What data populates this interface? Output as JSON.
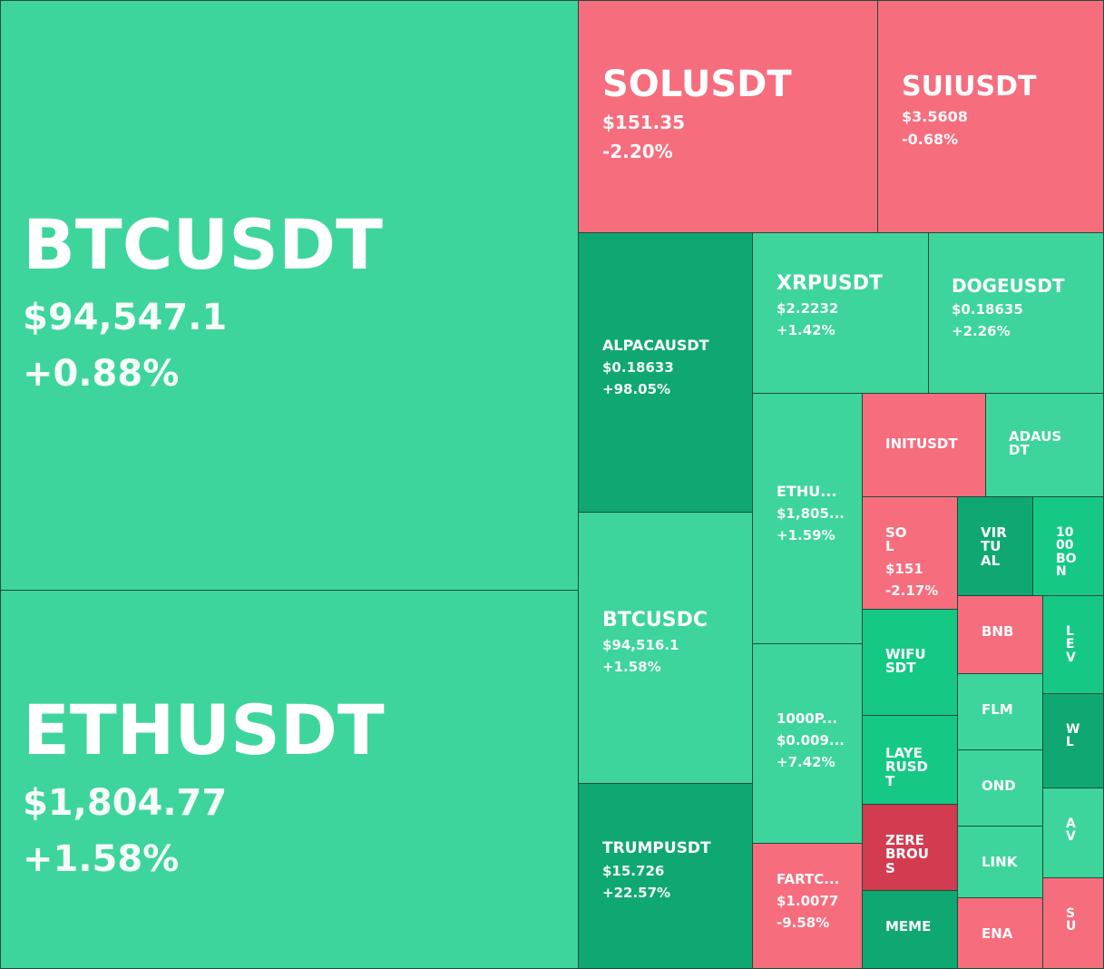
{
  "colors": {
    "up": "#3dd59b",
    "strong_up": "#10a872",
    "mid_up": "#15c985",
    "down": "#f66d7d",
    "strong_down": "#d33b51"
  },
  "chart_data": {
    "type": "treemap",
    "tiles": [
      {
        "symbol": "BTCUSDT",
        "price": "$94,547.1",
        "change": "+0.88%",
        "change_pct": 0.88
      },
      {
        "symbol": "ETHUSDT",
        "price": "$1,804.77",
        "change": "+1.58%",
        "change_pct": 1.58
      },
      {
        "symbol": "SOLUSDT",
        "price": "$151.35",
        "change": "-2.20%",
        "change_pct": -2.2
      },
      {
        "symbol": "SUIUSDT",
        "price": "$3.5608",
        "change": "-0.68%",
        "change_pct": -0.68
      },
      {
        "symbol": "ALPACAUSDT",
        "price": "$0.18633",
        "change": "+98.05%",
        "change_pct": 98.05
      },
      {
        "symbol": "XRPUSDT",
        "price": "$2.2232",
        "change": "+1.42%",
        "change_pct": 1.42
      },
      {
        "symbol": "DOGEUSDT",
        "price": "$0.18635",
        "change": "+2.26%",
        "change_pct": 2.26
      },
      {
        "symbol": "BTCUSDC",
        "price": "$94,516.1",
        "change": "+1.58%",
        "change_pct": 1.58
      },
      {
        "symbol": "ETHU...",
        "price": "$1,805...",
        "change": "+1.59%",
        "change_pct": 1.59
      },
      {
        "symbol": "INITUSDT",
        "price": "",
        "change": "",
        "change_pct": -1.0
      },
      {
        "symbol": "ADAUSDT",
        "price": "",
        "change": "",
        "change_pct": 1.0
      },
      {
        "symbol": "SOL",
        "price": "$151",
        "change": "-2.17%",
        "change_pct": -2.17
      },
      {
        "symbol": "VIRTUAL",
        "price": "",
        "change": "",
        "change_pct": 5.0
      },
      {
        "symbol": "1000BON",
        "price": "",
        "change": "",
        "change_pct": 4.0
      },
      {
        "symbol": "1000P...",
        "price": "$0.009...",
        "change": "+7.42%",
        "change_pct": 7.42
      },
      {
        "symbol": "TRUMPUSDT",
        "price": "$15.726",
        "change": "+22.57%",
        "change_pct": 22.57
      },
      {
        "symbol": "WIFUSDT",
        "price": "",
        "change": "",
        "change_pct": 4.0
      },
      {
        "symbol": "BNB",
        "price": "",
        "change": "",
        "change_pct": -1.0
      },
      {
        "symbol": "LEV",
        "price": "",
        "change": "",
        "change_pct": 4.0
      },
      {
        "symbol": "FLM",
        "price": "",
        "change": "",
        "change_pct": 1.0
      },
      {
        "symbol": "WL",
        "price": "",
        "change": "",
        "change_pct": 6.0
      },
      {
        "symbol": "LAYERUSDT",
        "price": "",
        "change": "",
        "change_pct": 4.0
      },
      {
        "symbol": "OND",
        "price": "",
        "change": "",
        "change_pct": 1.0
      },
      {
        "symbol": "AV",
        "price": "",
        "change": "",
        "change_pct": 1.0
      },
      {
        "symbol": "ZEREBROUS",
        "price": "",
        "change": "",
        "change_pct": -6.0
      },
      {
        "symbol": "LINK",
        "price": "",
        "change": "",
        "change_pct": 1.0
      },
      {
        "symbol": "FARTC...",
        "price": "$1.0077",
        "change": "-9.58%",
        "change_pct": -9.58
      },
      {
        "symbol": "MEME",
        "price": "",
        "change": "",
        "change_pct": 6.0
      },
      {
        "symbol": "ENA",
        "price": "",
        "change": "",
        "change_pct": -1.0
      },
      {
        "symbol": "SU",
        "price": "",
        "change": "",
        "change_pct": -1.0
      }
    ]
  }
}
